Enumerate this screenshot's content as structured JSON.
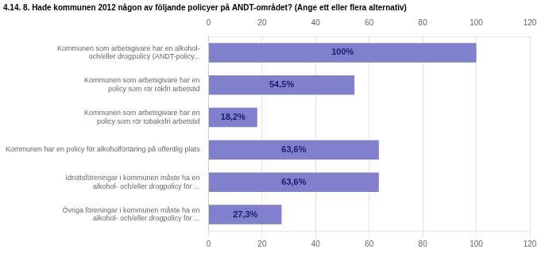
{
  "chart_data": {
    "type": "bar",
    "orientation": "horizontal",
    "title": "4.14. 8. Hade kommunen 2012 någon av följande policyer på ANDT-området? (Ange ett eller flera alternativ)",
    "categories": [
      "Kommunen som arbetsgivare har en alkohol-\noch/eller drogpolicy (ANDT-policy...",
      "Kommunen som arbetsgivare har en\npolicy som rör rökfri arbetstid",
      "Kommunen som arbetsgivare har en\npolicy som rör tobaksfri arbetstid",
      "Kommunen har en policy för alkoholförtäring på offentlig plats",
      "Idrottsföreningar i kommunen måste ha en\nalkohol- och/eller drogpolicy för ...",
      "Övriga föreningar i kommunen måste ha en\nalkohol- och/eller drogpolicy för ..."
    ],
    "values": [
      100.0,
      54.5,
      18.2,
      63.6,
      63.6,
      27.3
    ],
    "value_labels": [
      "100%",
      "54,5%",
      "18,2%",
      "63,6%",
      "63,6%",
      "27,3%"
    ],
    "color": "#8080cc",
    "xlim": [
      0,
      120
    ],
    "xticks": [
      0,
      20,
      40,
      60,
      80,
      100,
      120
    ],
    "grid": true,
    "data_labels": true
  }
}
